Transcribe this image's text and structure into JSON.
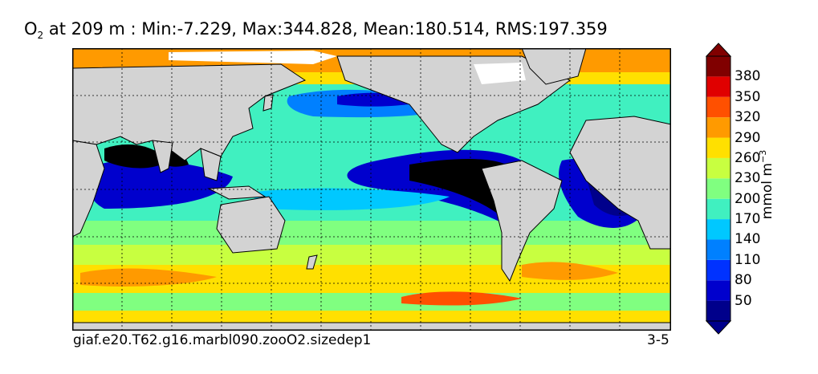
{
  "title": {
    "variable": "O",
    "variable_sub": "2",
    "text": "at 209 m : Min:-7.229, Max:344.828, Mean:180.514, RMS:197.359"
  },
  "caption": {
    "left": "giaf.e20.T62.g16.marbl090.zooO2.sizedep1",
    "right": "3-5"
  },
  "colorbar": {
    "unit_base": "mmol m",
    "unit_exp": "−3",
    "tick_labels": [
      "380",
      "350",
      "320",
      "290",
      "260",
      "230",
      "200",
      "170",
      "140",
      "110",
      "80",
      "50"
    ],
    "colors": [
      "#00008b",
      "#0000cd",
      "#0032ff",
      "#0080ff",
      "#00c8ff",
      "#40f0c0",
      "#80ff80",
      "#c8ff40",
      "#ffe000",
      "#ff9a00",
      "#ff5000",
      "#e00000",
      "#800000"
    ],
    "under_color": "#00008b",
    "over_color": "#000000"
  },
  "map": {
    "land_color": "#d3d3d3",
    "no_data_color": "#ffffff",
    "gridlines": "dotted"
  }
}
